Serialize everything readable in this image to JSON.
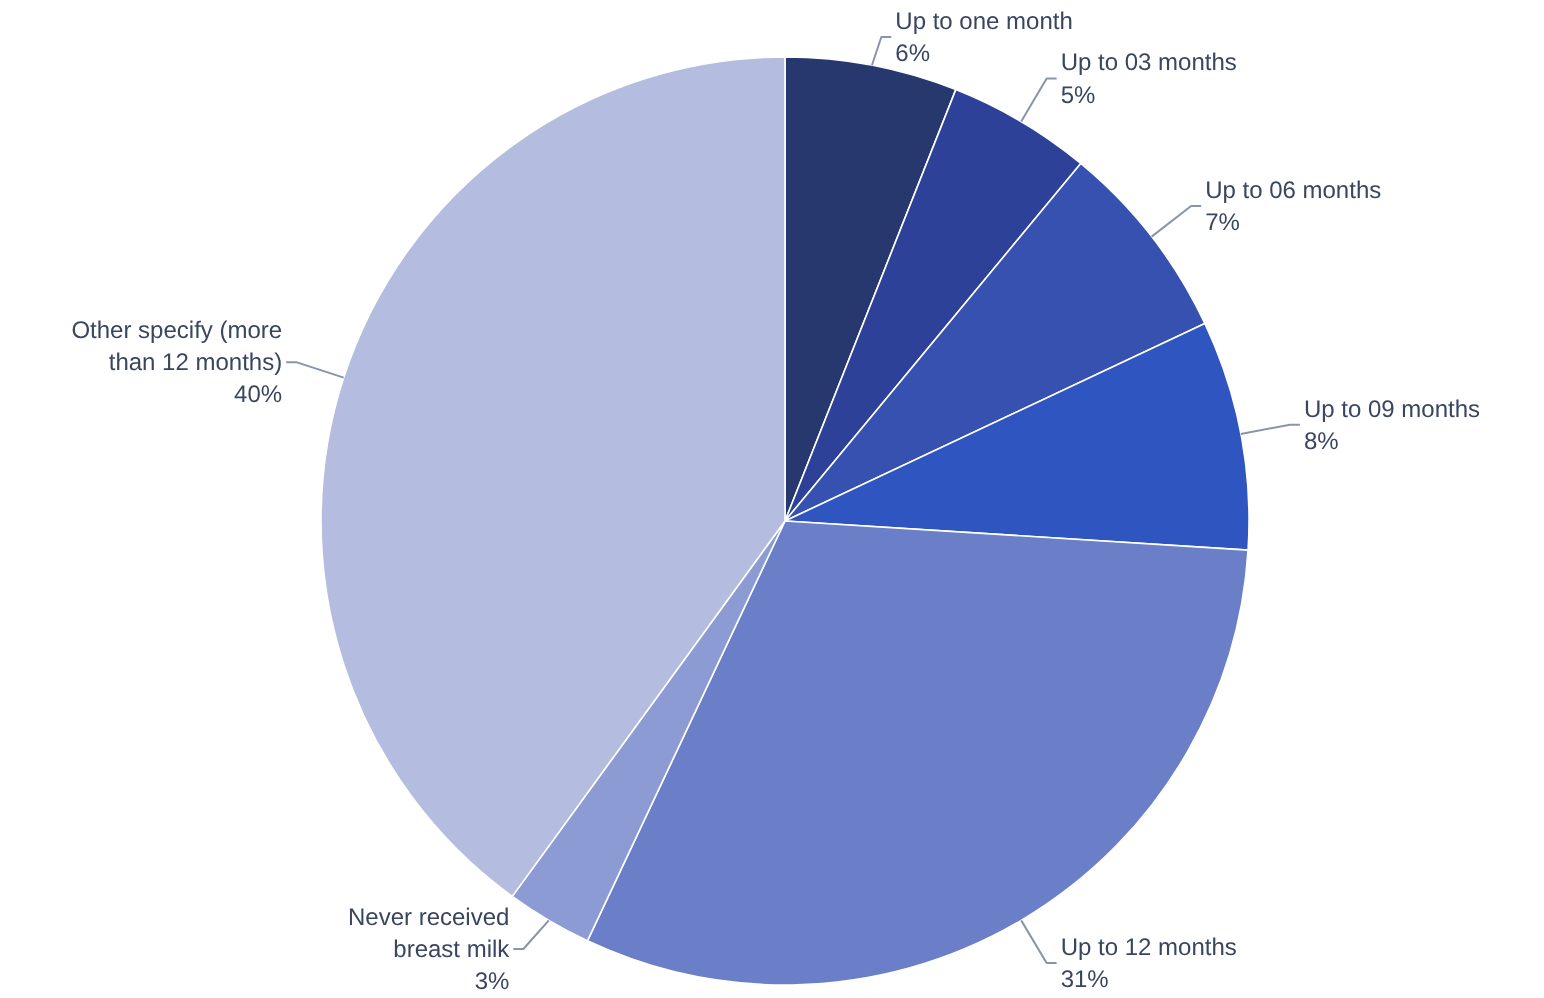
{
  "chart_data": {
    "type": "pie",
    "categories": [
      "Up to one month",
      "Up to 03 months",
      "Up to 06 months",
      "Up to 09 months",
      "Up to 12 months",
      "Never received breast milk",
      "Other specify (more than 12 months)"
    ],
    "values": [
      6,
      5,
      7,
      8,
      31,
      3,
      40
    ],
    "value_labels": [
      "6%",
      "5%",
      "7%",
      "8%",
      "31%",
      "3%",
      "40%"
    ],
    "colors": [
      "#27386f",
      "#2c4197",
      "#3651b0",
      "#2f55c0",
      "#6a7fc8",
      "#8c9bd3",
      "#b4bde0"
    ]
  }
}
